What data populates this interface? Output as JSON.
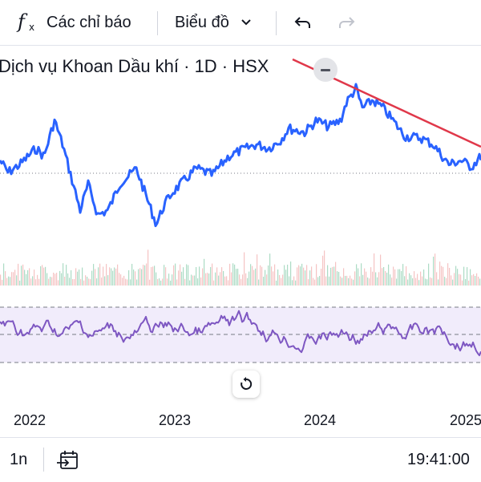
{
  "toolbar": {
    "indicators_label": "Các chỉ báo",
    "chart_type_label": "Biểu đồ"
  },
  "legend": {
    "title": "Dịch vụ Khoan Dầu khí · 1D · HSX"
  },
  "time_axis": {
    "labels": [
      "2022",
      "2023",
      "2024",
      "2025"
    ]
  },
  "bottom_bar": {
    "range_label": "1n",
    "clock": "19:41:00"
  },
  "colors": {
    "price_line": "#2962ff",
    "trend_line": "#e0384a",
    "rsi_line": "#7e57c2",
    "rsi_band": "#f1ecfb"
  },
  "icons": {
    "indicators": "function-fx-icon",
    "dropdown": "chevron-down-icon",
    "undo": "undo-icon",
    "redo": "redo-icon",
    "collapse": "minus-icon",
    "reset": "reset-rotate-icon",
    "goto_date": "calendar-arrow-icon"
  }
}
